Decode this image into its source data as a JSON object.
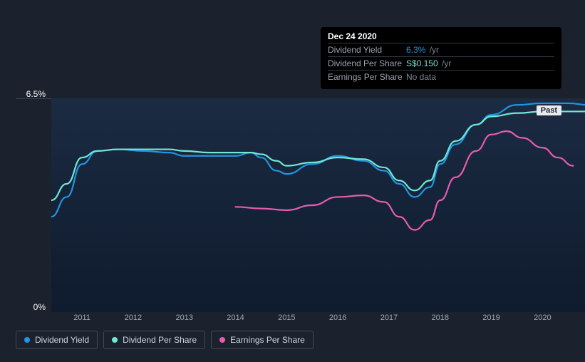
{
  "tooltip": {
    "date": "Dec 24 2020",
    "rows": [
      {
        "label": "Dividend Yield",
        "value": "6.3%",
        "unit": "/yr",
        "color_class": "v1"
      },
      {
        "label": "Dividend Per Share",
        "value": "S$0.150",
        "unit": "/yr",
        "color_class": "v2"
      },
      {
        "label": "Earnings Per Share",
        "value": "No data",
        "unit": "",
        "color_class": "nodata"
      }
    ]
  },
  "chart": {
    "type": "line",
    "background_color": "#1b222d",
    "plot_gradient_from": "#1b2b42",
    "plot_gradient_to": "#0f1b2e",
    "grid_color": "#3a4452",
    "y_axis": {
      "top_label": "6.5%",
      "bottom_label": "0%",
      "min": 0,
      "max": 6.5
    },
    "x_axis": {
      "ticks": [
        "2011",
        "2012",
        "2013",
        "2014",
        "2015",
        "2016",
        "2017",
        "2018",
        "2019",
        "2020"
      ],
      "domain_start": 2010.4,
      "domain_end": 2020.9
    },
    "past_label": "Past",
    "ref_line_x": 2020.9,
    "series": [
      {
        "name": "Dividend Yield",
        "color": "#2394df",
        "stroke_width": 2.2,
        "points": [
          [
            2010.4,
            2.9
          ],
          [
            2010.7,
            3.5
          ],
          [
            2011.0,
            4.5
          ],
          [
            2011.3,
            4.9
          ],
          [
            2011.7,
            4.95
          ],
          [
            2012.2,
            4.9
          ],
          [
            2012.7,
            4.85
          ],
          [
            2013.0,
            4.75
          ],
          [
            2013.5,
            4.75
          ],
          [
            2014.0,
            4.75
          ],
          [
            2014.3,
            4.85
          ],
          [
            2014.5,
            4.7
          ],
          [
            2014.8,
            4.3
          ],
          [
            2015.0,
            4.2
          ],
          [
            2015.5,
            4.5
          ],
          [
            2016.0,
            4.75
          ],
          [
            2016.5,
            4.6
          ],
          [
            2016.9,
            4.3
          ],
          [
            2017.2,
            3.9
          ],
          [
            2017.5,
            3.5
          ],
          [
            2017.8,
            3.8
          ],
          [
            2018.0,
            4.5
          ],
          [
            2018.3,
            5.1
          ],
          [
            2018.7,
            5.7
          ],
          [
            2019.0,
            6.0
          ],
          [
            2019.5,
            6.3
          ],
          [
            2020.0,
            6.35
          ],
          [
            2020.5,
            6.35
          ],
          [
            2020.9,
            6.3
          ]
        ]
      },
      {
        "name": "Dividend Per Share",
        "color": "#71e7d6",
        "stroke_width": 2.2,
        "points": [
          [
            2010.4,
            3.4
          ],
          [
            2010.7,
            3.9
          ],
          [
            2011.0,
            4.7
          ],
          [
            2011.3,
            4.9
          ],
          [
            2011.7,
            4.95
          ],
          [
            2012.2,
            4.95
          ],
          [
            2012.7,
            4.95
          ],
          [
            2013.0,
            4.9
          ],
          [
            2013.5,
            4.85
          ],
          [
            2014.0,
            4.85
          ],
          [
            2014.3,
            4.85
          ],
          [
            2014.5,
            4.8
          ],
          [
            2014.8,
            4.6
          ],
          [
            2015.0,
            4.45
          ],
          [
            2015.5,
            4.55
          ],
          [
            2016.0,
            4.7
          ],
          [
            2016.5,
            4.65
          ],
          [
            2016.9,
            4.4
          ],
          [
            2017.2,
            4.0
          ],
          [
            2017.5,
            3.7
          ],
          [
            2017.8,
            4.0
          ],
          [
            2018.0,
            4.6
          ],
          [
            2018.3,
            5.2
          ],
          [
            2018.7,
            5.7
          ],
          [
            2019.0,
            5.95
          ],
          [
            2019.5,
            6.05
          ],
          [
            2020.0,
            6.1
          ],
          [
            2020.5,
            6.1
          ],
          [
            2020.9,
            6.1
          ]
        ]
      },
      {
        "name": "Earnings Per Share",
        "color": "#e85bb0",
        "stroke_width": 2.2,
        "points": [
          [
            2014.0,
            3.2
          ],
          [
            2014.5,
            3.15
          ],
          [
            2015.0,
            3.1
          ],
          [
            2015.5,
            3.25
          ],
          [
            2016.0,
            3.5
          ],
          [
            2016.5,
            3.55
          ],
          [
            2016.9,
            3.35
          ],
          [
            2017.2,
            2.9
          ],
          [
            2017.5,
            2.5
          ],
          [
            2017.8,
            2.8
          ],
          [
            2018.0,
            3.4
          ],
          [
            2018.3,
            4.1
          ],
          [
            2018.7,
            4.9
          ],
          [
            2019.0,
            5.4
          ],
          [
            2019.3,
            5.5
          ],
          [
            2019.6,
            5.3
          ],
          [
            2020.0,
            5.0
          ],
          [
            2020.3,
            4.7
          ],
          [
            2020.6,
            4.45
          ]
        ]
      }
    ]
  },
  "legend": {
    "items": [
      {
        "label": "Dividend Yield",
        "color": "#2394df"
      },
      {
        "label": "Dividend Per Share",
        "color": "#71e7d6"
      },
      {
        "label": "Earnings Per Share",
        "color": "#e85bb0"
      }
    ]
  }
}
